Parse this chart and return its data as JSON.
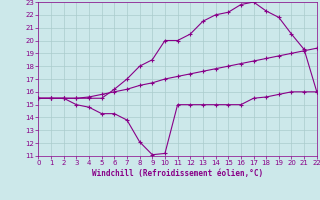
{
  "background_color": "#cce8ea",
  "grid_color": "#aacccc",
  "line_color": "#880088",
  "xlabel": "Windchill (Refroidissement éolien,°C)",
  "ylim": [
    11,
    23
  ],
  "xlim": [
    0,
    22
  ],
  "yticks": [
    11,
    12,
    13,
    14,
    15,
    16,
    17,
    18,
    19,
    20,
    21,
    22,
    23
  ],
  "xticks": [
    0,
    1,
    2,
    3,
    4,
    5,
    6,
    7,
    8,
    9,
    10,
    11,
    12,
    13,
    14,
    15,
    16,
    17,
    18,
    19,
    20,
    21,
    22
  ],
  "line1_x": [
    0,
    1,
    2,
    3,
    4,
    5,
    6,
    7,
    8,
    9,
    10,
    11,
    12,
    13,
    14,
    15,
    16,
    17,
    18,
    19,
    20,
    21,
    22
  ],
  "line1_y": [
    15.5,
    15.5,
    15.5,
    15.0,
    14.8,
    14.3,
    14.3,
    13.8,
    12.1,
    11.1,
    11.2,
    15.0,
    15.0,
    15.0,
    15.0,
    15.0,
    15.0,
    15.5,
    15.6,
    15.8,
    16.0,
    16.0,
    16.0
  ],
  "line2_x": [
    0,
    1,
    2,
    3,
    4,
    5,
    6,
    7,
    8,
    9,
    10,
    11,
    12,
    13,
    14,
    15,
    16,
    17,
    18,
    19,
    20,
    21,
    22
  ],
  "line2_y": [
    15.5,
    15.5,
    15.5,
    15.5,
    15.6,
    15.8,
    16.0,
    16.2,
    16.5,
    16.7,
    17.0,
    17.2,
    17.4,
    17.6,
    17.8,
    18.0,
    18.2,
    18.4,
    18.6,
    18.8,
    19.0,
    19.2,
    19.4
  ],
  "line3_x": [
    0,
    1,
    2,
    3,
    4,
    5,
    6,
    7,
    8,
    9,
    10,
    11,
    12,
    13,
    14,
    15,
    16,
    17,
    18,
    19,
    20,
    21,
    22
  ],
  "line3_y": [
    15.5,
    15.5,
    15.5,
    15.5,
    15.5,
    15.5,
    16.2,
    17.0,
    18.0,
    18.5,
    20.0,
    20.0,
    20.5,
    21.5,
    22.0,
    22.2,
    22.8,
    23.0,
    22.3,
    21.8,
    20.5,
    19.3,
    16.0
  ]
}
